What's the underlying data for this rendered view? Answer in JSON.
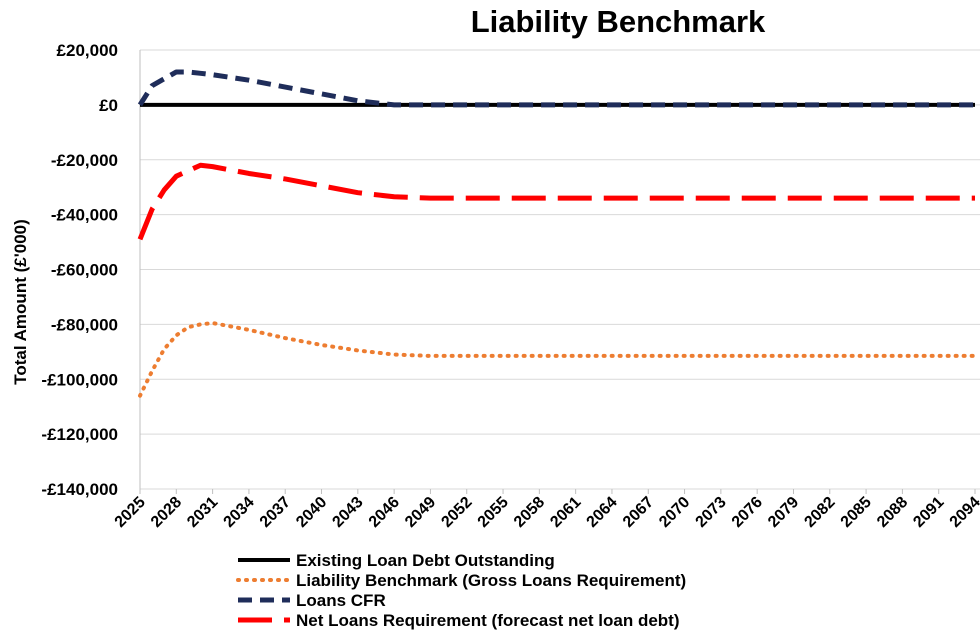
{
  "chart_data": {
    "type": "line",
    "title": "Liability Benchmark",
    "y_label": "Total Amount (£'000)",
    "x": [
      2025,
      2026,
      2027,
      2028,
      2029,
      2030,
      2031,
      2034,
      2037,
      2040,
      2043,
      2046,
      2049,
      2094
    ],
    "xlim": [
      2025,
      2094
    ],
    "xticks": [
      2025,
      2028,
      2031,
      2034,
      2037,
      2040,
      2043,
      2046,
      2049,
      2052,
      2055,
      2058,
      2061,
      2064,
      2067,
      2070,
      2073,
      2076,
      2079,
      2082,
      2085,
      2088,
      2091,
      2094
    ],
    "ylim": [
      -140000,
      20000
    ],
    "yticks": [
      {
        "value": -140000,
        "label": "-£140,000"
      },
      {
        "value": -120000,
        "label": "-£120,000"
      },
      {
        "value": -100000,
        "label": "-£100,000"
      },
      {
        "value": -80000,
        "label": "-£80,000"
      },
      {
        "value": -60000,
        "label": "-£60,000"
      },
      {
        "value": -40000,
        "label": "-£40,000"
      },
      {
        "value": -20000,
        "label": "-£20,000"
      },
      {
        "value": 0,
        "label": "£0"
      },
      {
        "value": 20000,
        "label": "£20,000"
      }
    ],
    "grid": true,
    "series": [
      {
        "name": "Existing Loan Debt Outstanding",
        "color": "#000000",
        "style": "solid",
        "values": [
          0,
          0,
          0,
          0,
          0,
          0,
          0,
          0,
          0,
          0,
          0,
          0,
          0,
          0
        ]
      },
      {
        "name": "Liability Benchmark (Gross Loans Requirement)",
        "color": "#ed7d31",
        "style": "dotted",
        "values": [
          -106000,
          -97000,
          -89000,
          -84000,
          -81000,
          -80000,
          -79500,
          -82000,
          -85000,
          -87500,
          -89500,
          -91000,
          -91500,
          -91500
        ]
      },
      {
        "name": "Loans CFR",
        "color": "#1f2d5a",
        "style": "dashed",
        "values": [
          0,
          7000,
          9500,
          12000,
          12000,
          11500,
          11000,
          9000,
          6500,
          4000,
          1500,
          0,
          0,
          0
        ]
      },
      {
        "name": "Net Loans Requirement (forecast net loan debt)",
        "color": "#ff0000",
        "style": "longdash",
        "values": [
          -49000,
          -38000,
          -31000,
          -26000,
          -24000,
          -22000,
          -22500,
          -25000,
          -27000,
          -29500,
          -32000,
          -33500,
          -34000,
          -34000
        ]
      }
    ]
  }
}
